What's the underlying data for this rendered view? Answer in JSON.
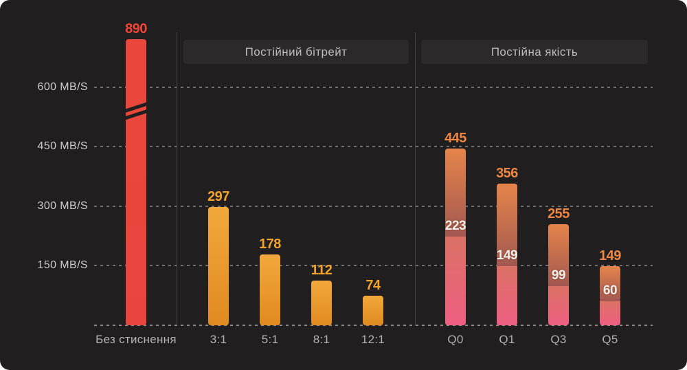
{
  "chart_data": {
    "type": "bar",
    "title": "",
    "unit": "MB/S",
    "xlabel": "",
    "ylabel": "MB/S",
    "ylim": [
      0,
      616
    ],
    "grid": "dashed horizontal",
    "y_ticks": [
      {
        "value": 600,
        "label": "600 MB/S"
      },
      {
        "value": 450,
        "label": "450 MB/S"
      },
      {
        "value": 300,
        "label": "300 MB/S"
      },
      {
        "value": 150,
        "label": "150 MB/S"
      }
    ],
    "axis_break": {
      "present": true,
      "on_bar": "Без стиснення",
      "reason": "value 890 exceeds axis range"
    },
    "sections": [
      {
        "title": "",
        "palette": "red",
        "bars": [
          {
            "category": "Без стиснення",
            "value": 890,
            "clipped_by_axis_break": true
          }
        ]
      },
      {
        "title": "Постійний бітрейт",
        "palette": "amber",
        "bars": [
          {
            "category": "3:1",
            "value": 297
          },
          {
            "category": "5:1",
            "value": 178
          },
          {
            "category": "8:1",
            "value": 112
          },
          {
            "category": "12:1",
            "value": 74
          }
        ]
      },
      {
        "title": "Постійна якість",
        "palette": "orange-pink",
        "bars": [
          {
            "category": "Q0",
            "value": 445,
            "inner_value": 223
          },
          {
            "category": "Q1",
            "value": 356,
            "inner_value": 149
          },
          {
            "category": "Q3",
            "value": 255,
            "inner_value": 99
          },
          {
            "category": "Q5",
            "value": 149,
            "inner_value": 60
          }
        ]
      }
    ],
    "colors": {
      "background": "#201e1e",
      "red_bar": "#e9473b",
      "amber_bar_top": "#f2a83c",
      "amber_bar_bottom": "#e08a20",
      "quality_bar_top": "#e5854b",
      "quality_bar_mid": "#a25750",
      "quality_bar_salmon": "#db7164",
      "quality_bar_pink": "#ee5f82",
      "value_label_red": "#ee4537",
      "value_label_amber": "#f0a42f",
      "value_label_orange": "#ed8743",
      "inner_label_white": "#f6efe7",
      "axis_text": "#cdcdcd",
      "category_text": "#b4b4b4",
      "header_text": "#bdbdbd",
      "header_pill_bg": "#2b2929"
    }
  }
}
